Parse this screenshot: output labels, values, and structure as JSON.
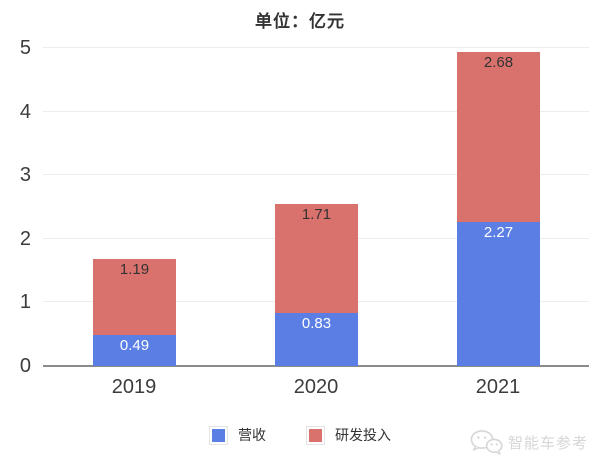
{
  "chart_data": {
    "type": "bar",
    "stacked": true,
    "title": "单位：亿元",
    "categories": [
      "2019",
      "2020",
      "2021"
    ],
    "series": [
      {
        "name": "营收",
        "color": "#5b7ee4",
        "label_color": "#ffffff",
        "values": [
          0.49,
          0.83,
          2.27
        ],
        "data_labels": [
          "0.49",
          "0.83",
          "2.27"
        ]
      },
      {
        "name": "研发投入",
        "color": "#d9716c",
        "label_color": "#333333",
        "values": [
          1.19,
          1.71,
          2.68
        ],
        "data_labels": [
          "1.19",
          "1.71",
          "2.68"
        ]
      }
    ],
    "xlabel": "",
    "ylabel": "",
    "ylim": [
      0,
      5
    ],
    "yticks": [
      0,
      1,
      2,
      3,
      4,
      5
    ],
    "ytick_labels": [
      "0",
      "1",
      "2",
      "3",
      "4",
      "5"
    ],
    "grid": true,
    "legend_position": "bottom",
    "colors": {
      "grid": "#ececec",
      "axis": "#8b8b8b",
      "tick_label": "#3c3c3c",
      "title": "#333333"
    }
  },
  "watermark": {
    "text": "智能车参考",
    "icon": "wechat-bubbles-icon",
    "color": "#d6d6d6"
  }
}
